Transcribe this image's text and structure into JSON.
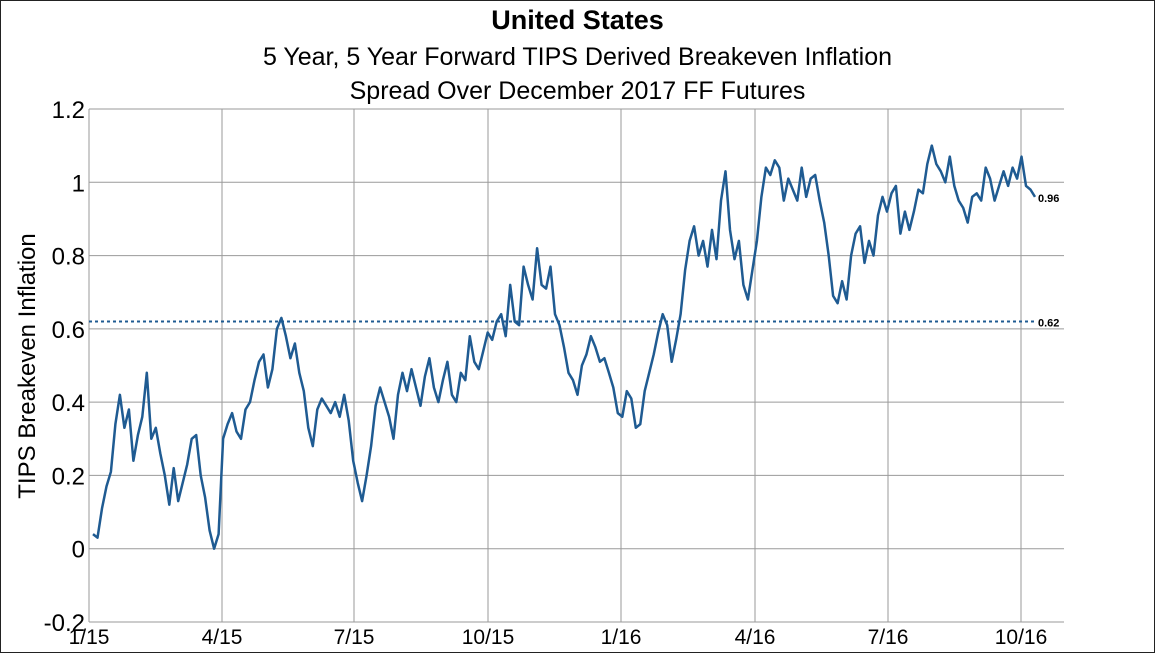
{
  "chart_data": {
    "type": "line",
    "title": "United States",
    "subtitle_lines": [
      "5 Year, 5 Year Forward TIPS Derived Breakeven Inflation",
      "Spread Over December 2017 FF Futures"
    ],
    "ylabel": "TIPS Breakeven Inflation",
    "xlabel": "",
    "ylim": [
      -0.2,
      1.2
    ],
    "y_ticks": [
      "1.2",
      "1",
      "0.8",
      "0.6",
      "0.4",
      "0.2",
      "0",
      "-0.2"
    ],
    "x_ticks": [
      "1/15",
      "4/15",
      "7/15",
      "10/15",
      "1/16",
      "4/16",
      "7/16",
      "10/16"
    ],
    "grid": true,
    "color": "#1f5b92",
    "series": [
      {
        "values": [
          0.04,
          0.03,
          0.11,
          0.17,
          0.21,
          0.34,
          0.42,
          0.33,
          0.38,
          0.24,
          0.31,
          0.36,
          0.48,
          0.3,
          0.33,
          0.26,
          0.2,
          0.12,
          0.22,
          0.13,
          0.18,
          0.23,
          0.3,
          0.31,
          0.2,
          0.14,
          0.05,
          0.0,
          0.04,
          0.3,
          0.34,
          0.37,
          0.32,
          0.3,
          0.38,
          0.4,
          0.46,
          0.51,
          0.53,
          0.44,
          0.49,
          0.6,
          0.63,
          0.58,
          0.52,
          0.56,
          0.48,
          0.43,
          0.33,
          0.28,
          0.38,
          0.41,
          0.39,
          0.37,
          0.4,
          0.36,
          0.42,
          0.35,
          0.24,
          0.18,
          0.13,
          0.2,
          0.28,
          0.39,
          0.44,
          0.4,
          0.36,
          0.3,
          0.42,
          0.48,
          0.43,
          0.49,
          0.44,
          0.39,
          0.47,
          0.52,
          0.44,
          0.4,
          0.46,
          0.51,
          0.42,
          0.4,
          0.48,
          0.46,
          0.58,
          0.51,
          0.49,
          0.54,
          0.59,
          0.57,
          0.62,
          0.64,
          0.58,
          0.72,
          0.62,
          0.61,
          0.77,
          0.72,
          0.68,
          0.82,
          0.72,
          0.71,
          0.77,
          0.64,
          0.61,
          0.55,
          0.48,
          0.46,
          0.42,
          0.5,
          0.53,
          0.58,
          0.55,
          0.51,
          0.52,
          0.48,
          0.44,
          0.37,
          0.36,
          0.43,
          0.41,
          0.33,
          0.34,
          0.43,
          0.48,
          0.53,
          0.59,
          0.64,
          0.61,
          0.51,
          0.57,
          0.64,
          0.76,
          0.84,
          0.88,
          0.8,
          0.84,
          0.77,
          0.87,
          0.79,
          0.95,
          1.03,
          0.87,
          0.79,
          0.84,
          0.72,
          0.68,
          0.76,
          0.84,
          0.96,
          1.04,
          1.02,
          1.06,
          1.04,
          0.95,
          1.01,
          0.98,
          0.95,
          1.04,
          0.96,
          1.01,
          1.02,
          0.95,
          0.89,
          0.8,
          0.69,
          0.67,
          0.73,
          0.68,
          0.8,
          0.86,
          0.88,
          0.78,
          0.84,
          0.8,
          0.91,
          0.96,
          0.92,
          0.97,
          0.99,
          0.86,
          0.92,
          0.87,
          0.92,
          0.98,
          0.97,
          1.05,
          1.1,
          1.05,
          1.03,
          1.0,
          1.07,
          0.99,
          0.95,
          0.93,
          0.89,
          0.96,
          0.97,
          0.95,
          1.04,
          1.01,
          0.95,
          0.99,
          1.03,
          0.99,
          1.04,
          1.01,
          1.07,
          0.99,
          0.98,
          0.96
        ]
      }
    ],
    "reference_line": {
      "value": 0.62,
      "label": "0.62",
      "style": "dashed"
    },
    "last_value_label": "0.96"
  }
}
